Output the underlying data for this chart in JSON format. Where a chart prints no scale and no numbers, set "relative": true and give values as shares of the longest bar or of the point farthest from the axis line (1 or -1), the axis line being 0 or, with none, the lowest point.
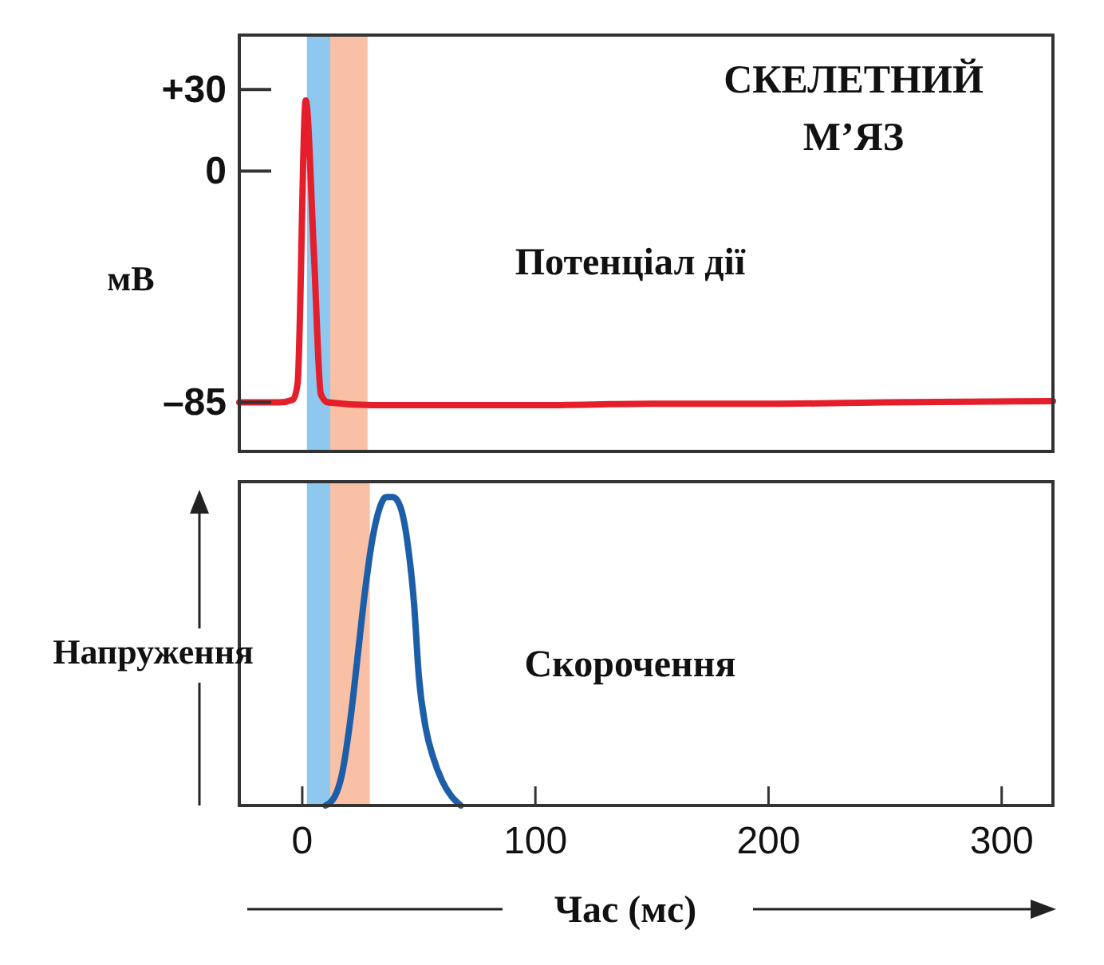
{
  "chart_data": [
    {
      "type": "line",
      "title": "СКЕЛЕТНИЙ М’ЯЗ",
      "ylabel": "мВ",
      "annotations": [
        "Потенціал дії"
      ],
      "xlim": [
        -27,
        322
      ],
      "ylim": [
        -103,
        50
      ],
      "yticks": [
        {
          "value": 30,
          "label": "+30"
        },
        0,
        {
          "value": -85,
          "label": "–85"
        }
      ],
      "tick_labels": "y",
      "marker": "none",
      "line_style": "solid",
      "bands": [
        {
          "axis": "x",
          "from": 2,
          "to": 12,
          "label": null,
          "color": "#8ec8ef"
        },
        {
          "axis": "x",
          "from": 12,
          "to": 28,
          "label": null,
          "color": "#f9c0a6"
        }
      ],
      "series": [
        {
          "color": "#e41f2b",
          "x": [
            -27,
            -10,
            -4,
            -2,
            1.5,
            5,
            8,
            11,
            30,
            100,
            150,
            200,
            250,
            322
          ],
          "values": [
            -85,
            -85,
            -84,
            -78,
            26,
            -30,
            -82,
            -85,
            -86,
            -86,
            -85.5,
            -85.5,
            -85,
            -84.5
          ]
        }
      ]
    },
    {
      "type": "line",
      "ylabel": "Напруження",
      "xlabel": "Час (мс)",
      "annotations": [
        "Скорочення"
      ],
      "relative": true,
      "xlim": [
        -27,
        322
      ],
      "xticks": [
        0,
        100,
        200,
        300
      ],
      "tick_labels": "x",
      "marker": "none",
      "line_style": "solid",
      "bands": [
        {
          "axis": "x",
          "from": 2,
          "to": 12,
          "label": null,
          "color": "#8ec8ef"
        },
        {
          "axis": "x",
          "from": 12,
          "to": 29,
          "label": null,
          "color": "#f9c0a6"
        }
      ],
      "series": [
        {
          "color": "#1d5ea8",
          "x": [
            10,
            14,
            17,
            21,
            24,
            27,
            30,
            33,
            36,
            39,
            42,
            45,
            48,
            50,
            53,
            56,
            60,
            64,
            68
          ],
          "values": [
            0,
            0.03,
            0.1,
            0.3,
            0.5,
            0.7,
            0.86,
            0.96,
            1,
            1,
            0.97,
            0.86,
            0.65,
            0.42,
            0.25,
            0.16,
            0.08,
            0.03,
            0
          ]
        }
      ]
    }
  ]
}
